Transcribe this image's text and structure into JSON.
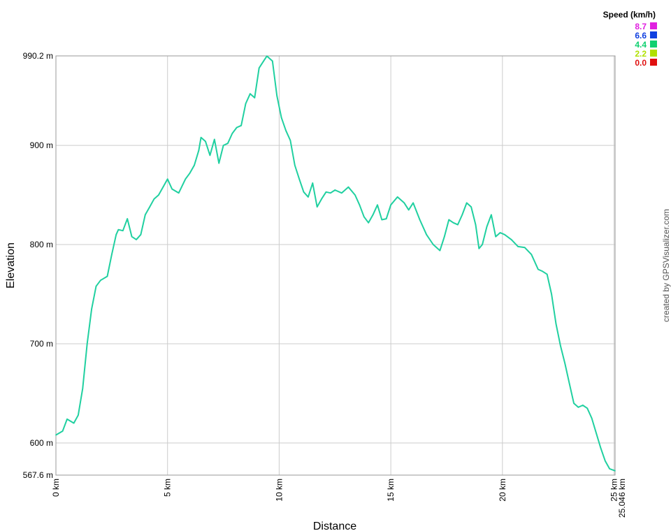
{
  "chart_data": {
    "type": "line",
    "title": "",
    "xlabel": "Distance",
    "ylabel": "Elevation",
    "xlim": [
      0,
      25.046
    ],
    "ylim": [
      567.6,
      990.2
    ],
    "x_ticks": [
      {
        "value": 0,
        "label": "0 km"
      },
      {
        "value": 5,
        "label": "5 km"
      },
      {
        "value": 10,
        "label": "10 km"
      },
      {
        "value": 15,
        "label": "15 km"
      },
      {
        "value": 20,
        "label": "20 km"
      },
      {
        "value": 25,
        "label": "25 km"
      },
      {
        "value": 25.046,
        "label": "25.046 km"
      }
    ],
    "y_ticks": [
      {
        "value": 567.6,
        "label": "567.6 m"
      },
      {
        "value": 600,
        "label": "600 m"
      },
      {
        "value": 700,
        "label": "700 m"
      },
      {
        "value": 800,
        "label": "800 m"
      },
      {
        "value": 900,
        "label": "900 m"
      },
      {
        "value": 990.2,
        "label": "990.2 m"
      }
    ],
    "grid": true,
    "legend": {
      "title": "Speed (km/h)",
      "placement": "top-right",
      "entries": [
        {
          "label": "8.7",
          "color": "#e020e0"
        },
        {
          "label": "6.6",
          "color": "#1040e0"
        },
        {
          "label": "4.4",
          "color": "#10d070"
        },
        {
          "label": "2.2",
          "color": "#b0e000"
        },
        {
          "label": "0.0",
          "color": "#e01010"
        }
      ]
    },
    "line_color": "#20d0a0",
    "series": [
      {
        "x": [
          0,
          0.3,
          0.5,
          0.8,
          1.0,
          1.2,
          1.4,
          1.6,
          1.8,
          2.0,
          2.3,
          2.5,
          2.7,
          2.8,
          3.0,
          3.2,
          3.4,
          3.6,
          3.8,
          4.0,
          4.2,
          4.4,
          4.6,
          4.8,
          5.0,
          5.2,
          5.5,
          5.8,
          6.0,
          6.2,
          6.4,
          6.5,
          6.7,
          6.9,
          7.1,
          7.3,
          7.5,
          7.7,
          7.9,
          8.1,
          8.3,
          8.5,
          8.7,
          8.9,
          9.1,
          9.3,
          9.45,
          9.7,
          9.9,
          10.1,
          10.3,
          10.5,
          10.7,
          10.9,
          11.1,
          11.3,
          11.5,
          11.7,
          11.9,
          12.1,
          12.3,
          12.5,
          12.8,
          13.1,
          13.4,
          13.6,
          13.8,
          14.0,
          14.2,
          14.4,
          14.6,
          14.8,
          15.0,
          15.3,
          15.6,
          15.8,
          16.0,
          16.3,
          16.6,
          16.9,
          17.2,
          17.4,
          17.6,
          17.8,
          18.0,
          18.2,
          18.4,
          18.6,
          18.8,
          18.95,
          19.1,
          19.3,
          19.5,
          19.7,
          19.9,
          20.1,
          20.4,
          20.7,
          21.0,
          21.3,
          21.6,
          21.8,
          22.0,
          22.2,
          22.4,
          22.6,
          22.8,
          23.0,
          23.2,
          23.4,
          23.6,
          23.8,
          24.0,
          24.2,
          24.4,
          24.6,
          24.8,
          25.046
        ],
        "y": [
          608,
          612,
          624,
          620,
          628,
          655,
          700,
          735,
          758,
          764,
          768,
          790,
          810,
          815,
          814,
          826,
          808,
          805,
          810,
          830,
          838,
          846,
          850,
          858,
          866,
          856,
          852,
          866,
          872,
          880,
          895,
          908,
          904,
          890,
          906,
          882,
          900,
          902,
          912,
          918,
          920,
          942,
          952,
          948,
          978,
          985,
          990,
          985,
          950,
          928,
          915,
          905,
          880,
          866,
          853,
          848,
          862,
          838,
          846,
          853,
          852,
          855,
          852,
          858,
          850,
          840,
          828,
          822,
          830,
          840,
          825,
          826,
          840,
          848,
          842,
          835,
          842,
          825,
          810,
          800,
          794,
          808,
          825,
          822,
          820,
          830,
          842,
          838,
          820,
          796,
          800,
          818,
          830,
          808,
          812,
          810,
          805,
          798,
          797,
          790,
          775,
          773,
          770,
          750,
          720,
          698,
          680,
          660,
          640,
          636,
          638,
          635,
          625,
          610,
          595,
          582,
          574,
          572
        ]
      }
    ],
    "credit": "created by GPSVisualizer.com"
  }
}
